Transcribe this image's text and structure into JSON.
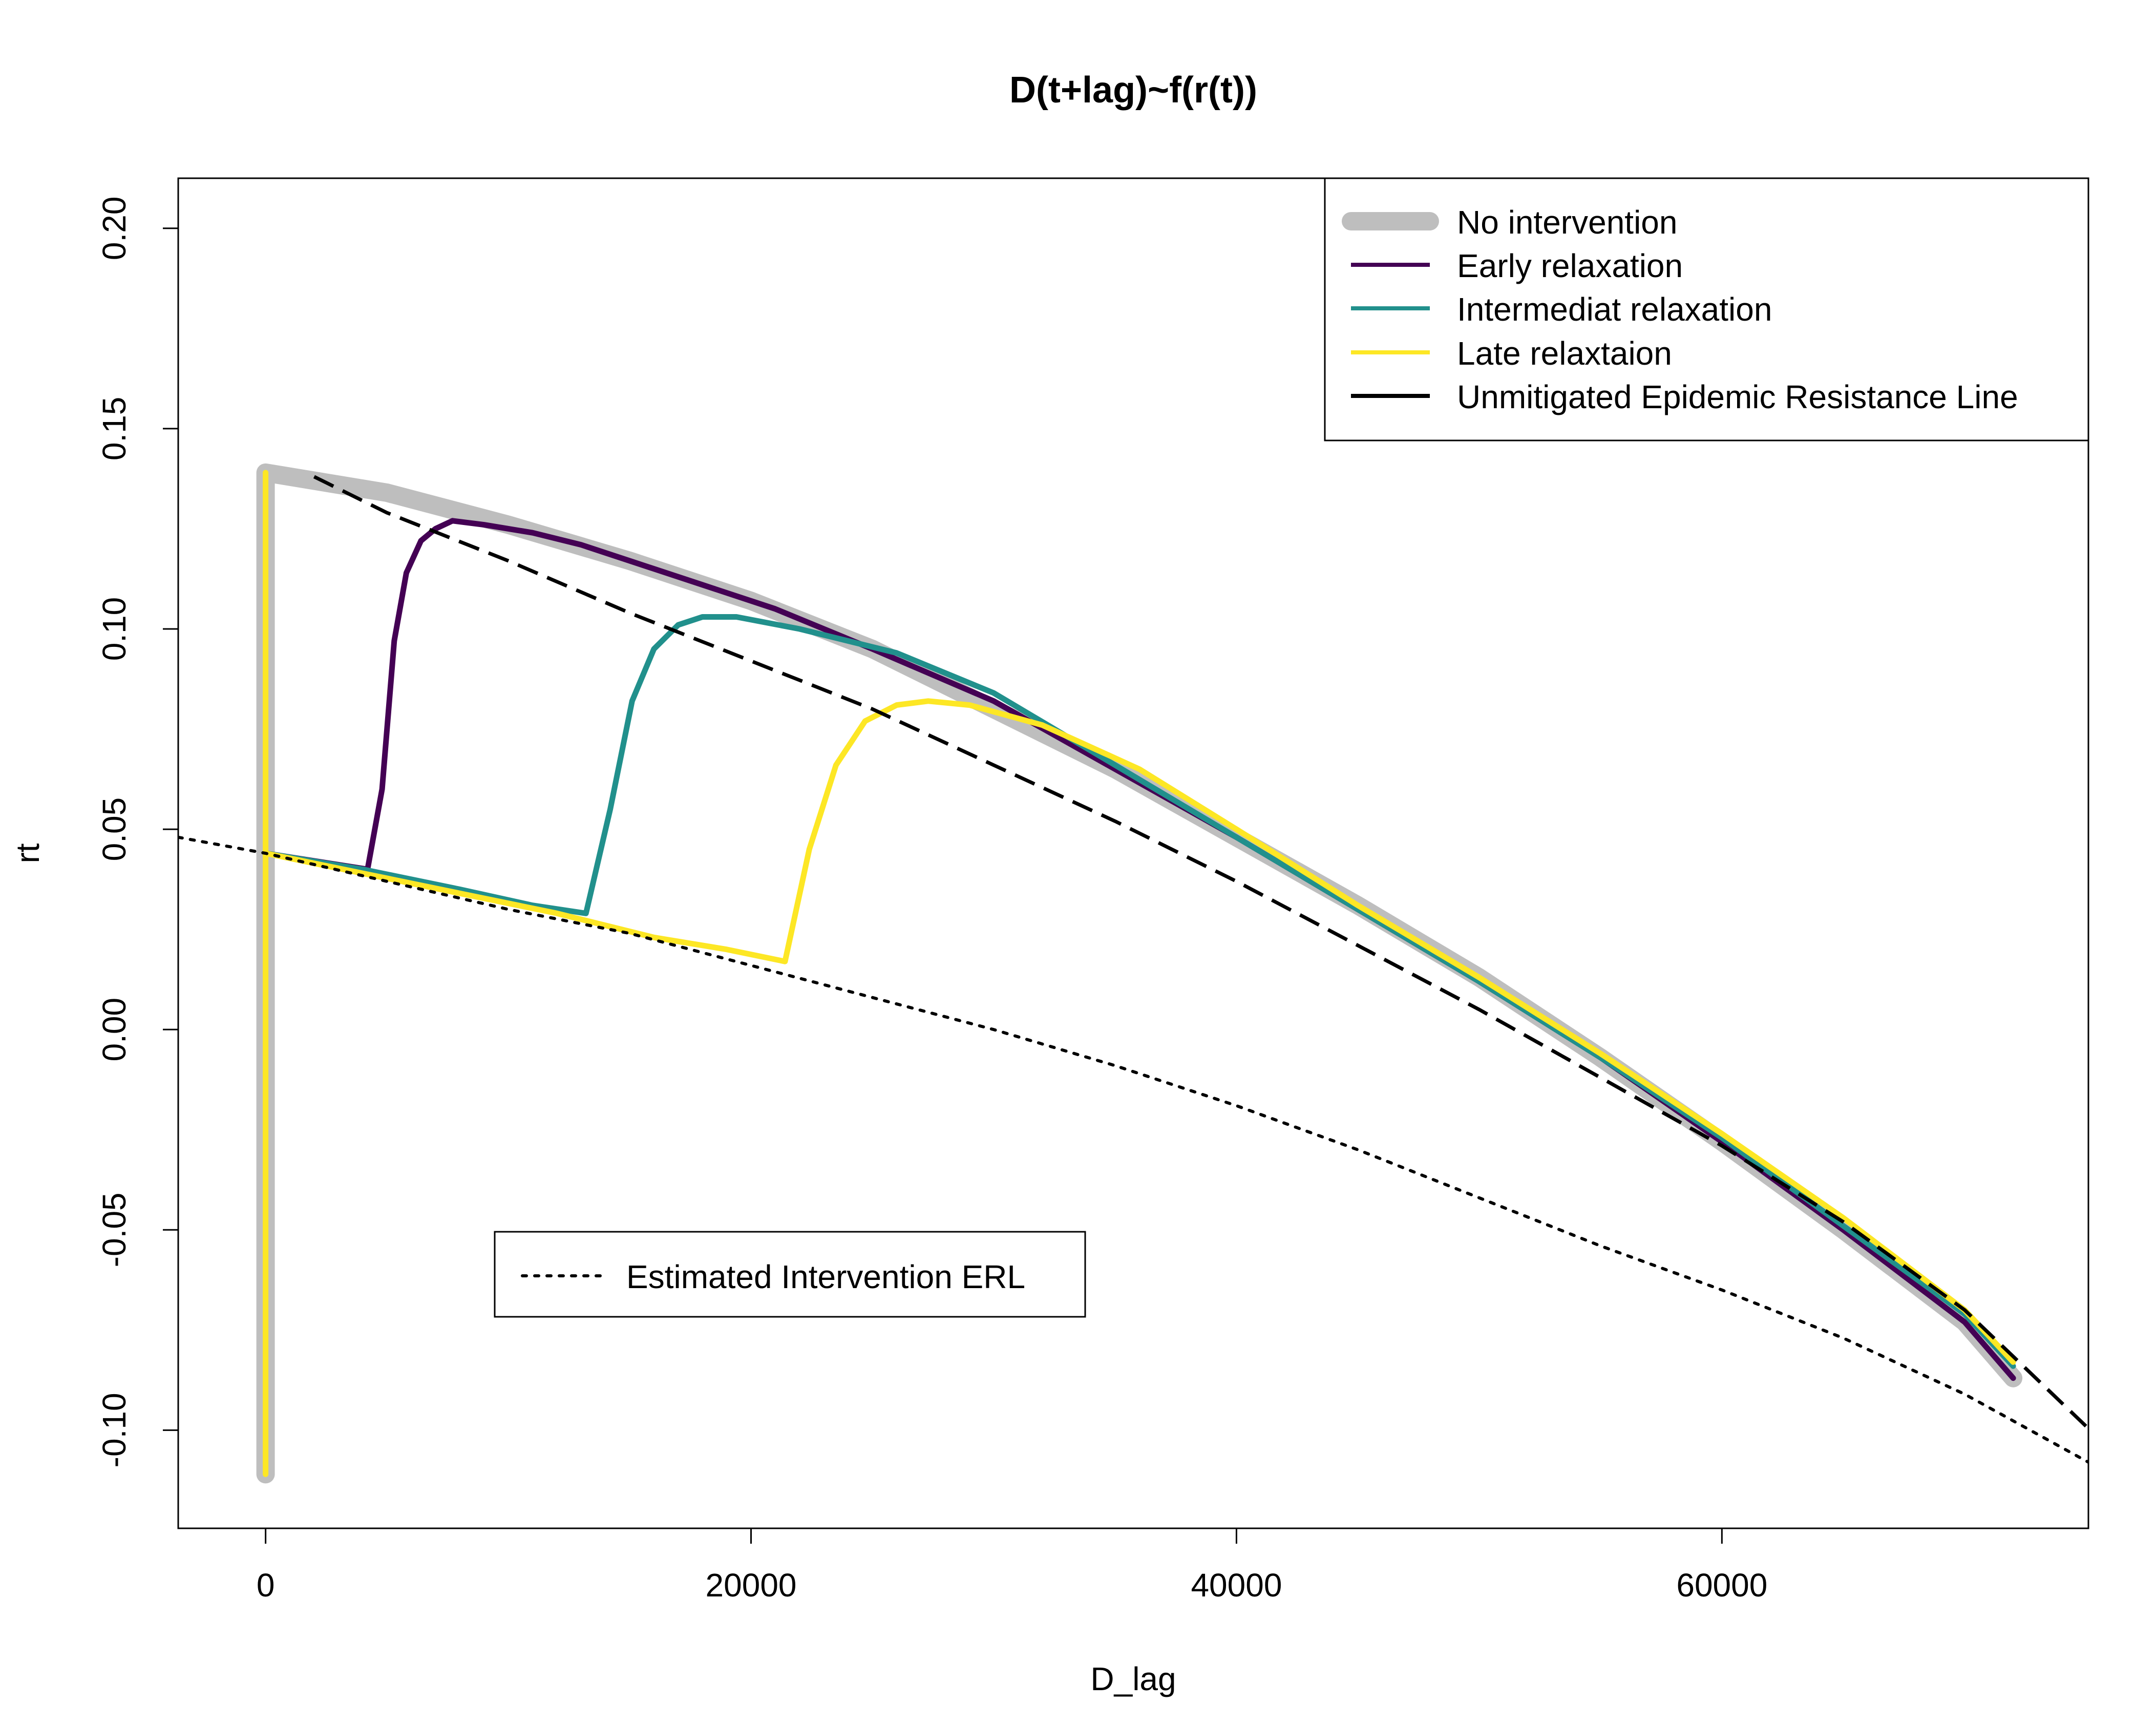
{
  "chart_data": {
    "type": "line",
    "title": "D(t+lag)~f(r(t))",
    "xlabel": "D_lag",
    "ylabel": "rt",
    "xlim": [
      -3600,
      75100
    ],
    "ylim": [
      -0.1245,
      0.2125
    ],
    "x_ticks": [
      0,
      20000,
      40000,
      60000
    ],
    "x_tick_labels": [
      "0",
      "20000",
      "40000",
      "60000"
    ],
    "y_ticks": [
      -0.1,
      -0.05,
      0.0,
      0.05,
      0.1,
      0.15,
      0.2
    ],
    "y_tick_labels": [
      "-0.10",
      "-0.05",
      "0.00",
      "0.05",
      "0.10",
      "0.15",
      "0.20"
    ],
    "grid": false,
    "legend_main": {
      "placement": "top-right",
      "entries": [
        {
          "label": "No intervention",
          "color": "#BEBEBE",
          "style": "thick"
        },
        {
          "label": "Early relaxation",
          "color": "#440154",
          "style": "solid"
        },
        {
          "label": "Intermediat relaxation",
          "color": "#21908C",
          "style": "solid"
        },
        {
          "label": "Late relaxtaion",
          "color": "#FDE725",
          "style": "solid"
        },
        {
          "label": "Unmitigated Epidemic Resistance Line",
          "color": "#000000",
          "style": "solid"
        }
      ]
    },
    "legend_secondary": {
      "placement": "bottom-left",
      "entries": [
        {
          "label": "Estimated Intervention ERL",
          "color": "#000000",
          "style": "dotted"
        }
      ]
    },
    "series": [
      {
        "name": "No intervention",
        "color": "#BEBEBE",
        "dash": "solid",
        "points": [
          [
            0,
            -0.111
          ],
          [
            0,
            0.139
          ],
          [
            5000,
            0.134
          ],
          [
            10000,
            0.126
          ],
          [
            15000,
            0.117
          ],
          [
            20000,
            0.107
          ],
          [
            25000,
            0.095
          ],
          [
            30000,
            0.08
          ],
          [
            35000,
            0.065
          ],
          [
            40000,
            0.048
          ],
          [
            45000,
            0.031
          ],
          [
            50000,
            0.013
          ],
          [
            55000,
            -0.007
          ],
          [
            60000,
            -0.028
          ],
          [
            65000,
            -0.05
          ],
          [
            70000,
            -0.073
          ],
          [
            72000,
            -0.087
          ]
        ]
      },
      {
        "name": "Early relaxation",
        "color": "#440154",
        "dash": "solid",
        "points": [
          [
            0,
            0.044
          ],
          [
            4200,
            0.04
          ],
          [
            4800,
            0.06
          ],
          [
            5300,
            0.097
          ],
          [
            5800,
            0.114
          ],
          [
            6400,
            0.122
          ],
          [
            7000,
            0.125
          ],
          [
            7700,
            0.127
          ],
          [
            9000,
            0.126
          ],
          [
            11000,
            0.124
          ],
          [
            13000,
            0.121
          ],
          [
            15000,
            0.117
          ],
          [
            18000,
            0.111
          ],
          [
            21000,
            0.105
          ],
          [
            25000,
            0.095
          ],
          [
            30000,
            0.082
          ],
          [
            35000,
            0.065
          ],
          [
            40000,
            0.048
          ],
          [
            45000,
            0.03
          ],
          [
            50000,
            0.012
          ],
          [
            55000,
            -0.007
          ],
          [
            60000,
            -0.028
          ],
          [
            65000,
            -0.05
          ],
          [
            70000,
            -0.073
          ],
          [
            72000,
            -0.087
          ]
        ]
      },
      {
        "name": "Intermediat relaxation",
        "color": "#21908C",
        "dash": "solid",
        "points": [
          [
            0,
            0.044
          ],
          [
            4000,
            0.04
          ],
          [
            8000,
            0.035
          ],
          [
            11000,
            0.031
          ],
          [
            13200,
            0.029
          ],
          [
            14200,
            0.055
          ],
          [
            15100,
            0.082
          ],
          [
            16000,
            0.095
          ],
          [
            17000,
            0.101
          ],
          [
            18000,
            0.103
          ],
          [
            19400,
            0.103
          ],
          [
            22000,
            0.1
          ],
          [
            26000,
            0.094
          ],
          [
            30000,
            0.084
          ],
          [
            35000,
            0.066
          ],
          [
            40000,
            0.048
          ],
          [
            45000,
            0.03
          ],
          [
            50000,
            0.012
          ],
          [
            55000,
            -0.007
          ],
          [
            60000,
            -0.027
          ],
          [
            65000,
            -0.049
          ],
          [
            70000,
            -0.071
          ],
          [
            72000,
            -0.084
          ]
        ]
      },
      {
        "name": "Late relaxtaion",
        "color": "#FDE725",
        "dash": "solid",
        "points": [
          [
            0,
            0.139
          ],
          [
            0,
            -0.111
          ],
          [
            0,
            0.044
          ],
          [
            4000,
            0.039
          ],
          [
            8000,
            0.034
          ],
          [
            12000,
            0.029
          ],
          [
            16000,
            0.023
          ],
          [
            19000,
            0.02
          ],
          [
            21400,
            0.017
          ],
          [
            22400,
            0.045
          ],
          [
            23500,
            0.066
          ],
          [
            24700,
            0.077
          ],
          [
            26000,
            0.081
          ],
          [
            27300,
            0.082
          ],
          [
            29000,
            0.081
          ],
          [
            32000,
            0.076
          ],
          [
            36000,
            0.065
          ],
          [
            40000,
            0.05
          ],
          [
            45000,
            0.031
          ],
          [
            50000,
            0.013
          ],
          [
            55000,
            -0.006
          ],
          [
            60000,
            -0.026
          ],
          [
            65000,
            -0.047
          ],
          [
            70000,
            -0.07
          ],
          [
            72000,
            -0.083
          ]
        ]
      },
      {
        "name": "Unmitigated Epidemic Resistance Line",
        "color": "#000000",
        "dash": "dashed",
        "points": [
          [
            2000,
            0.138
          ],
          [
            5000,
            0.129
          ],
          [
            10000,
            0.117
          ],
          [
            15000,
            0.104
          ],
          [
            20000,
            0.092
          ],
          [
            25000,
            0.08
          ],
          [
            30000,
            0.066
          ],
          [
            35000,
            0.052
          ],
          [
            40000,
            0.037
          ],
          [
            45000,
            0.021
          ],
          [
            50000,
            0.005
          ],
          [
            55000,
            -0.012
          ],
          [
            60000,
            -0.029
          ],
          [
            65000,
            -0.048
          ],
          [
            70000,
            -0.07
          ],
          [
            75000,
            -0.099
          ]
        ]
      },
      {
        "name": "Estimated Intervention ERL",
        "color": "#000000",
        "dash": "dotted",
        "points": [
          [
            -3600,
            0.048
          ],
          [
            0,
            0.044
          ],
          [
            5000,
            0.037
          ],
          [
            10000,
            0.03
          ],
          [
            15000,
            0.024
          ],
          [
            20000,
            0.016
          ],
          [
            25000,
            0.008
          ],
          [
            30000,
            0.0
          ],
          [
            35000,
            -0.009
          ],
          [
            40000,
            -0.019
          ],
          [
            45000,
            -0.03
          ],
          [
            50000,
            -0.042
          ],
          [
            55000,
            -0.054
          ],
          [
            60000,
            -0.065
          ],
          [
            65000,
            -0.077
          ],
          [
            70000,
            -0.091
          ],
          [
            75100,
            -0.108
          ]
        ]
      }
    ]
  }
}
